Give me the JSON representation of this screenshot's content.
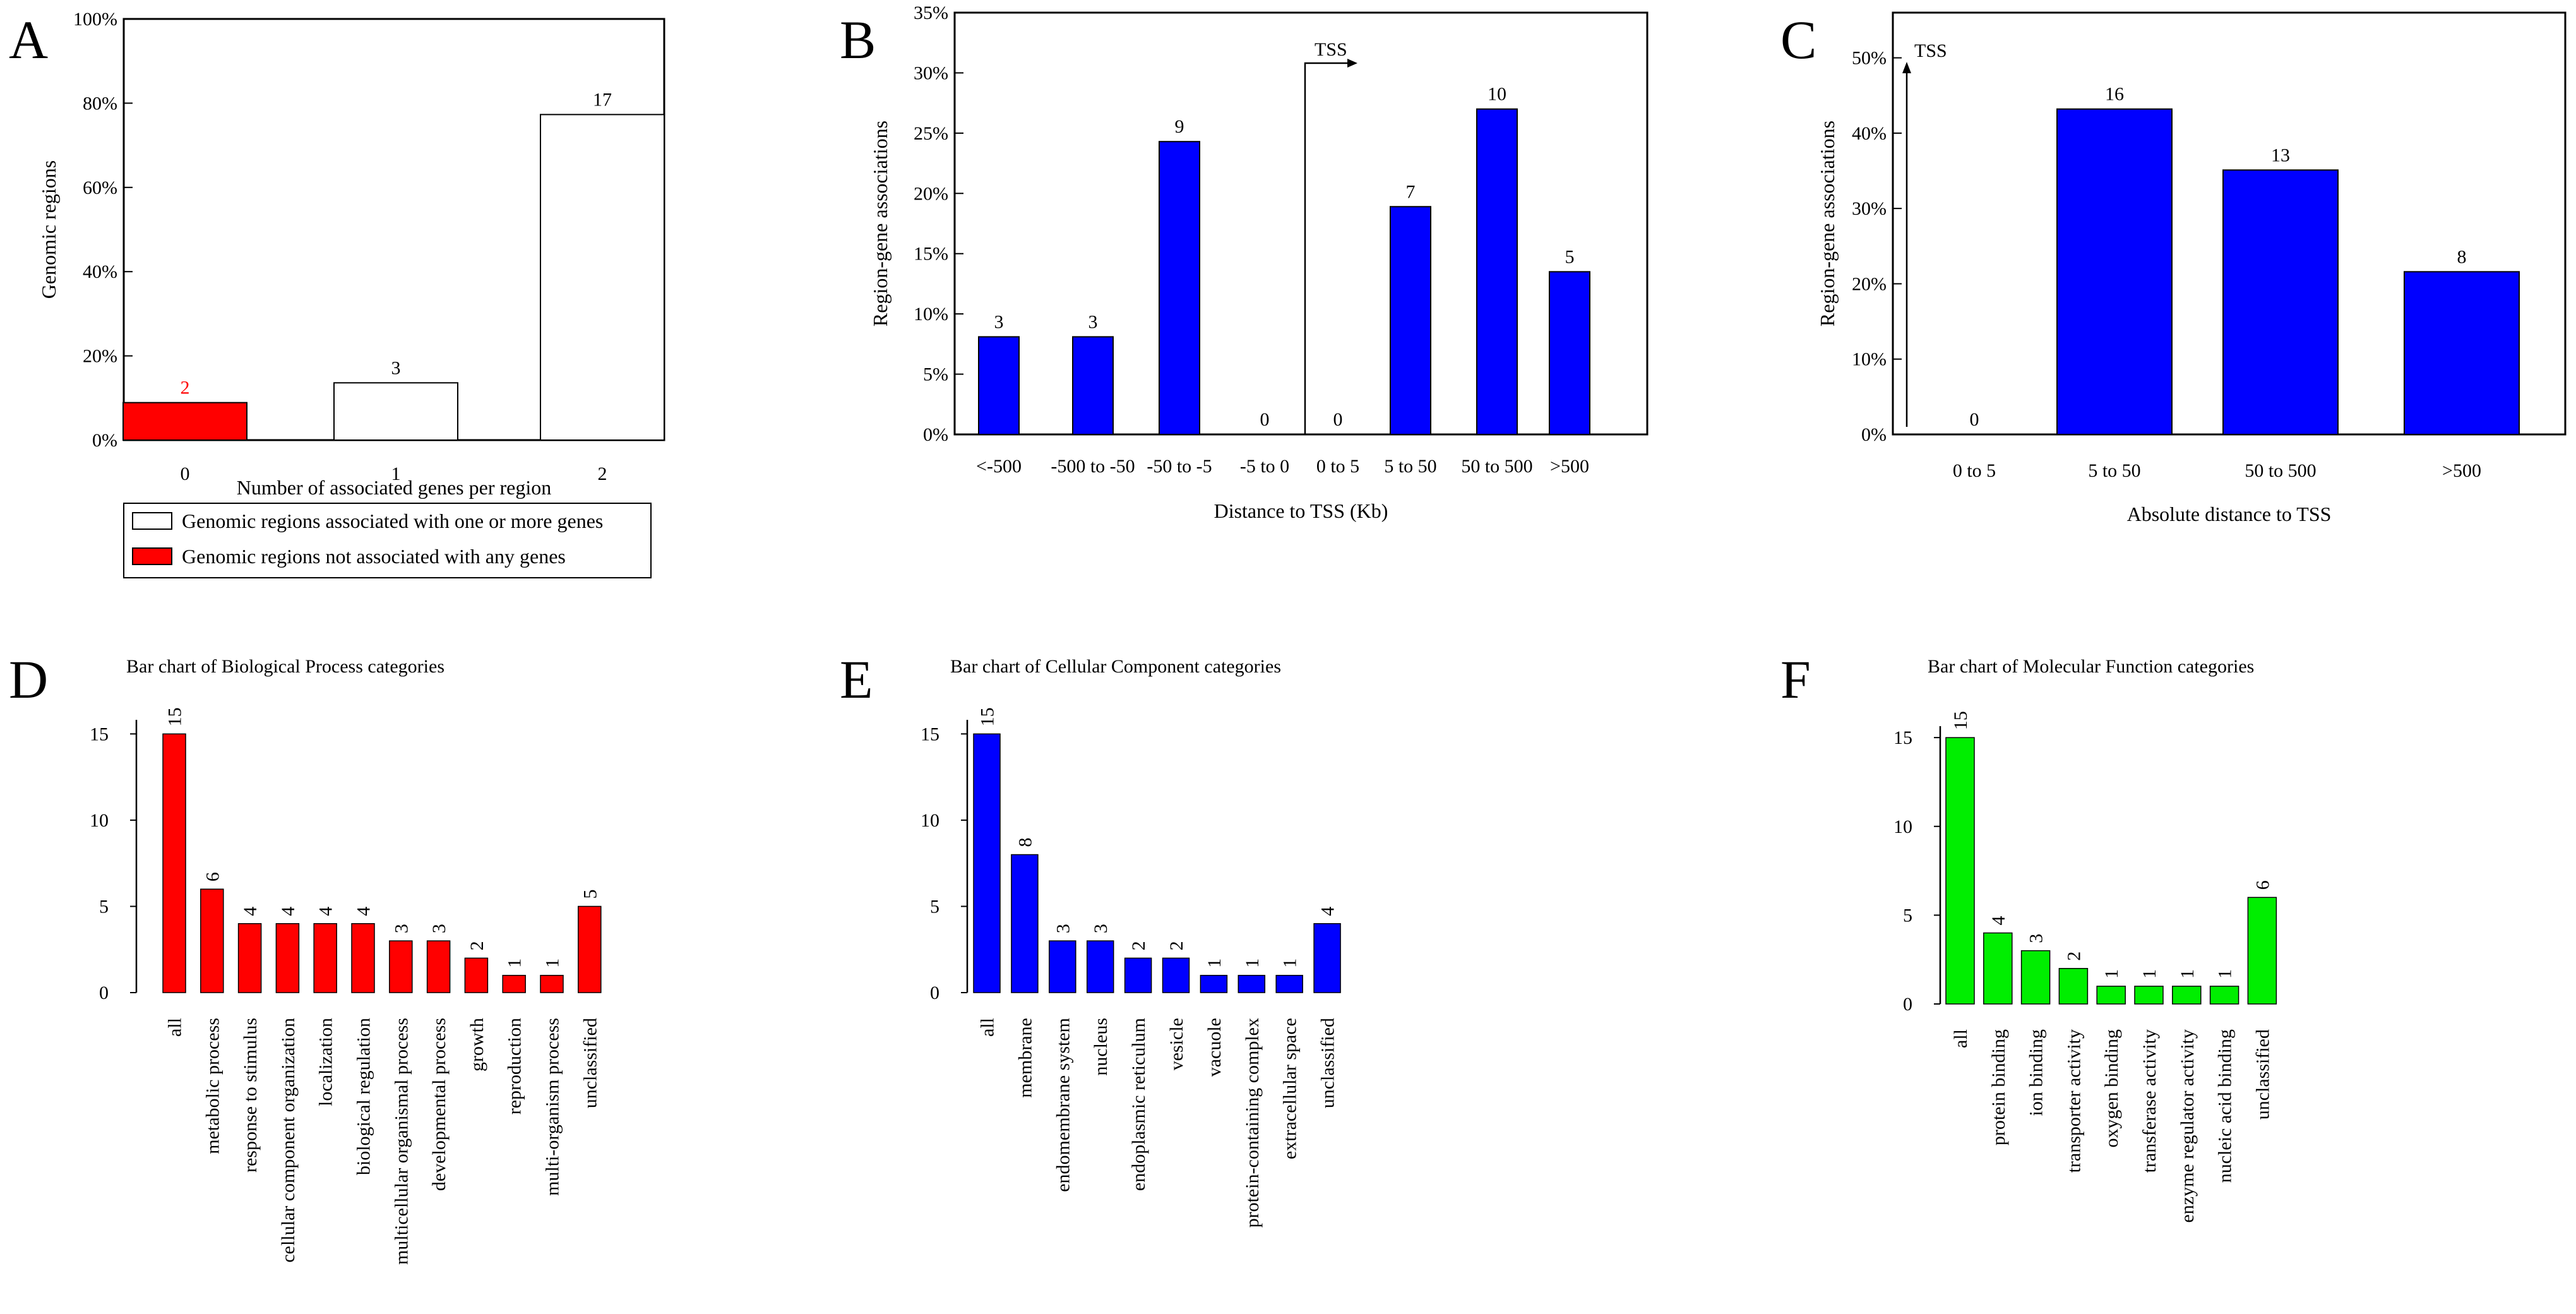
{
  "colors": {
    "red": "#ff0000",
    "blue": "#0000ff",
    "green": "#00ee00",
    "white": "#ffffff",
    "black": "#000000"
  },
  "chart_data": [
    {
      "panel": "A",
      "type": "bar",
      "title": "",
      "xlabel": "Number of associated genes per region",
      "ylabel": "Genomic regions",
      "categories": [
        "0",
        "1",
        "2"
      ],
      "values": [
        8.9,
        13.6,
        77.3
      ],
      "labels": [
        "2",
        "3",
        "17"
      ],
      "bar_colors": [
        "#ff0000",
        "#ffffff",
        "#ffffff"
      ],
      "label_colors": [
        "#ff0000",
        "#000000",
        "#000000"
      ],
      "ylim": [
        0,
        100
      ],
      "yticks": [
        0,
        20,
        40,
        60,
        80,
        100
      ],
      "ytick_labels": [
        "0%",
        "20%",
        "40%",
        "60%",
        "80%",
        "100%"
      ],
      "legend": {
        "position": "bottom",
        "items": [
          {
            "label": "Genomic regions associated with one or more genes",
            "color": "#ffffff"
          },
          {
            "label": "Genomic regions not associated with any genes",
            "color": "#ff0000"
          }
        ]
      }
    },
    {
      "panel": "B",
      "type": "bar",
      "title": "",
      "xlabel": "Distance to TSS (Kb)",
      "ylabel": "Region-gene associations",
      "categories": [
        "<-500",
        "-500 to -50",
        "-50 to -5",
        "-5 to 0",
        "0 to 5",
        "5 to 50",
        "50 to 500",
        ">500"
      ],
      "values": [
        8.1,
        8.1,
        24.3,
        0,
        0,
        18.9,
        27.0,
        13.5
      ],
      "labels": [
        "3",
        "3",
        "9",
        "0",
        "0",
        "7",
        "10",
        "5"
      ],
      "color": "#0000ff",
      "ylim": [
        0,
        35
      ],
      "yticks": [
        0,
        5,
        10,
        15,
        20,
        25,
        30,
        35
      ],
      "ytick_labels": [
        "0%",
        "5%",
        "10%",
        "15%",
        "20%",
        "25%",
        "30%",
        "35%"
      ],
      "annotation": "TSS"
    },
    {
      "panel": "C",
      "type": "bar",
      "title": "",
      "xlabel": "Absolute distance to TSS",
      "ylabel": "Region-gene associations",
      "categories": [
        "0 to 5",
        "5 to 50",
        "50 to 500",
        ">500"
      ],
      "values": [
        0,
        43.2,
        35.1,
        21.6
      ],
      "labels": [
        "0",
        "16",
        "13",
        "8"
      ],
      "color": "#0000ff",
      "ylim": [
        0,
        56
      ],
      "yticks": [
        0,
        10,
        20,
        30,
        40,
        50
      ],
      "ytick_labels": [
        "0%",
        "10%",
        "20%",
        "30%",
        "40%",
        "50%"
      ],
      "annotation": "TSS"
    },
    {
      "panel": "D",
      "type": "bar",
      "title": "Bar chart of Biological Process categories",
      "xlabel": "",
      "ylabel": "",
      "categories": [
        "all",
        "metabolic process",
        "response to stimulus",
        "cellular component organization",
        "localization",
        "biological regulation",
        "multicellular organismal process",
        "developmental process",
        "growth",
        "reproduction",
        "multi-organism process",
        "unclassified"
      ],
      "values": [
        15,
        6,
        4,
        4,
        4,
        4,
        3,
        3,
        2,
        1,
        1,
        5
      ],
      "labels": [
        "15",
        "6",
        "4",
        "4",
        "4",
        "4",
        "3",
        "3",
        "2",
        "1",
        "1",
        "5"
      ],
      "color": "#ff0000",
      "ylim": [
        0,
        16
      ],
      "yticks": [
        0,
        5,
        10,
        15
      ],
      "ytick_labels": [
        "0",
        "5",
        "10",
        "15"
      ]
    },
    {
      "panel": "E",
      "type": "bar",
      "title": "Bar chart of Cellular Component categories",
      "xlabel": "",
      "ylabel": "",
      "categories": [
        "all",
        "membrane",
        "endomembrane system",
        "nucleus",
        "endoplasmic reticulum",
        "vesicle",
        "vacuole",
        "protein-containing complex",
        "extracellular space",
        "unclassified"
      ],
      "values": [
        15,
        8,
        3,
        3,
        2,
        2,
        1,
        1,
        1,
        4
      ],
      "labels": [
        "15",
        "8",
        "3",
        "3",
        "2",
        "2",
        "1",
        "1",
        "1",
        "4"
      ],
      "color": "#0000ff",
      "ylim": [
        0,
        16
      ],
      "yticks": [
        0,
        5,
        10,
        15
      ],
      "ytick_labels": [
        "0",
        "5",
        "10",
        "15"
      ]
    },
    {
      "panel": "F",
      "type": "bar",
      "title": "Bar chart of Molecular Function categories",
      "xlabel": "",
      "ylabel": "",
      "categories": [
        "all",
        "protein binding",
        "ion binding",
        "transporter activity",
        "oxygen binding",
        "transferase activity",
        "enzyme regulator activity",
        "nucleic acid binding",
        "unclassified"
      ],
      "values": [
        15,
        4,
        3,
        2,
        1,
        1,
        1,
        1,
        6
      ],
      "labels": [
        "15",
        "4",
        "3",
        "2",
        "1",
        "1",
        "1",
        "1",
        "6"
      ],
      "color": "#00ee00",
      "ylim": [
        0,
        16
      ],
      "yticks": [
        0,
        5,
        10,
        15
      ],
      "ytick_labels": [
        "0",
        "5",
        "10",
        "15"
      ]
    }
  ]
}
